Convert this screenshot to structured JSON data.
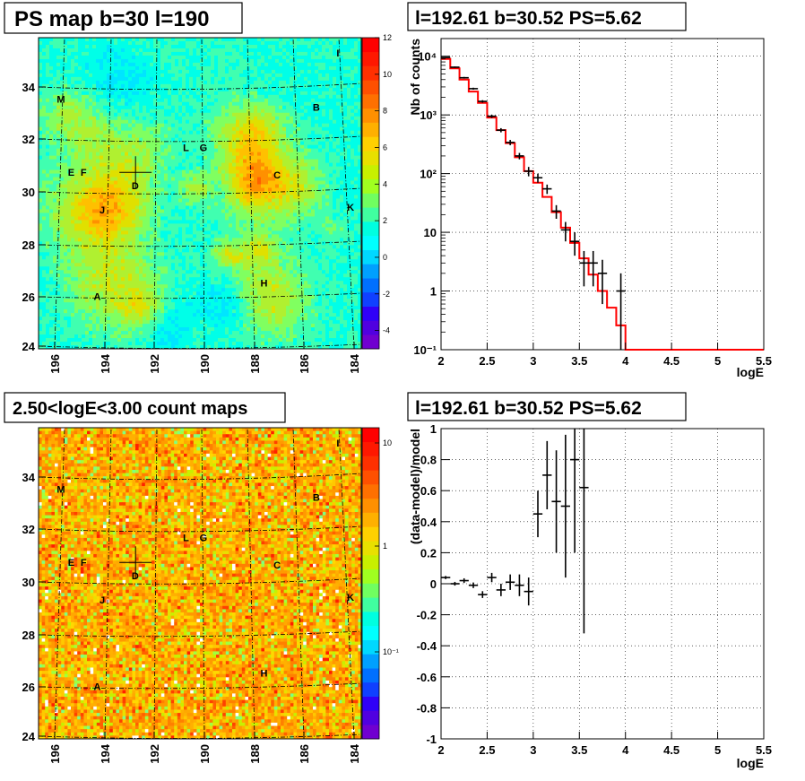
{
  "panels": {
    "ps_map": {
      "title": "PS map b=30 l=190"
    },
    "spectrum": {
      "title": "l=192.61 b=30.52 PS=5.62"
    },
    "count_map": {
      "title": "2.50<logE<3.00 count maps"
    },
    "residual": {
      "title": "l=192.61 b=30.52 PS=5.62"
    }
  },
  "chart_data": [
    {
      "type": "heatmap",
      "title": "PS map b=30 l=190",
      "x_ticks": [
        "196",
        "194",
        "192",
        "190",
        "188",
        "186",
        "184"
      ],
      "y_ticks": [
        "24",
        "26",
        "28",
        "30",
        "32",
        "34"
      ],
      "xlim": [
        196.5,
        183.5
      ],
      "ylim": [
        24,
        35.5
      ],
      "colorbar_ticks": [
        "12",
        "10",
        "8",
        "6",
        "4",
        "2",
        "0",
        "-2",
        "-4"
      ],
      "colorbar_range": [
        -5,
        12
      ],
      "sources": [
        {
          "label": "A",
          "l": 194.0,
          "b": 25.8
        },
        {
          "label": "B",
          "l": 185.4,
          "b": 32.8
        },
        {
          "label": "C",
          "l": 186.9,
          "b": 30.3
        },
        {
          "label": "D",
          "l": 192.6,
          "b": 29.9
        },
        {
          "label": "E",
          "l": 195.2,
          "b": 30.4
        },
        {
          "label": "F",
          "l": 194.7,
          "b": 30.4
        },
        {
          "label": "G",
          "l": 189.9,
          "b": 31.3
        },
        {
          "label": "H",
          "l": 187.3,
          "b": 26.3
        },
        {
          "label": "I",
          "l": 184.6,
          "b": 34.8
        },
        {
          "label": "J",
          "l": 193.9,
          "b": 29.0
        },
        {
          "label": "K",
          "l": 183.9,
          "b": 29.1
        },
        {
          "label": "L",
          "l": 190.6,
          "b": 31.3
        },
        {
          "label": "M",
          "l": 195.7,
          "b": 33.1
        }
      ],
      "marker": {
        "l": 192.61,
        "b": 30.52
      }
    },
    {
      "type": "line",
      "title": "l=192.61 b=30.52 PS=5.62",
      "xlabel": "logE",
      "ylabel": "Nb of counts",
      "xlim": [
        2,
        5.5
      ],
      "ylim": [
        0.1,
        20000
      ],
      "log_y": true,
      "x_ticks": [
        "2",
        "2.5",
        "3",
        "3.5",
        "4",
        "4.5",
        "5",
        "5.5"
      ],
      "y_ticks": [
        "10⁻¹",
        "1",
        "10",
        "10²",
        "10³",
        "10⁴"
      ],
      "grid": true,
      "model_bins": [
        2.0,
        2.1,
        2.2,
        2.3,
        2.4,
        2.5,
        2.6,
        2.7,
        2.8,
        2.9,
        3.0,
        3.1,
        3.2,
        3.3,
        3.4,
        3.5,
        3.6,
        3.7,
        3.8,
        3.9,
        4.0,
        5.5
      ],
      "model_values": [
        9000,
        6200,
        4000,
        2500,
        1600,
        900,
        550,
        330,
        190,
        110,
        70,
        40,
        22,
        12,
        6.6,
        3.6,
        1.9,
        1.0,
        0.52,
        0.26,
        0.1
      ],
      "data_points": [
        {
          "x": 2.05,
          "y": 9500,
          "err": 200
        },
        {
          "x": 2.15,
          "y": 6500,
          "err": 170
        },
        {
          "x": 2.25,
          "y": 4300,
          "err": 140
        },
        {
          "x": 2.35,
          "y": 2800,
          "err": 110
        },
        {
          "x": 2.45,
          "y": 1700,
          "err": 85
        },
        {
          "x": 2.55,
          "y": 950,
          "err": 60
        },
        {
          "x": 2.65,
          "y": 550,
          "err": 45
        },
        {
          "x": 2.75,
          "y": 340,
          "err": 35
        },
        {
          "x": 2.85,
          "y": 200,
          "err": 25
        },
        {
          "x": 2.95,
          "y": 110,
          "err": 20
        },
        {
          "x": 3.05,
          "y": 85,
          "err": 15
        },
        {
          "x": 3.15,
          "y": 55,
          "err": 10
        },
        {
          "x": 3.25,
          "y": 23,
          "err": 6
        },
        {
          "x": 3.35,
          "y": 11,
          "err": 4
        },
        {
          "x": 3.45,
          "y": 7,
          "err": 3
        },
        {
          "x": 3.55,
          "y": 3,
          "err": 1.8
        },
        {
          "x": 3.65,
          "y": 3,
          "err": 1.8
        },
        {
          "x": 3.75,
          "y": 2,
          "err": 1.4
        },
        {
          "x": 3.95,
          "y": 1,
          "err": 1
        }
      ]
    },
    {
      "type": "heatmap",
      "title": "2.50<logE<3.00 count maps",
      "x_ticks": [
        "196",
        "194",
        "192",
        "190",
        "188",
        "186",
        "184"
      ],
      "y_ticks": [
        "24",
        "26",
        "28",
        "30",
        "32",
        "34"
      ],
      "colorbar_ticks": [
        "10",
        "1",
        "10⁻¹"
      ],
      "log_color": true
    },
    {
      "type": "scatter",
      "title": "l=192.61 b=30.52 PS=5.62",
      "xlabel": "logE",
      "ylabel": "(data-model)/model",
      "xlim": [
        2,
        5.5
      ],
      "ylim": [
        -1,
        1
      ],
      "x_ticks": [
        "2",
        "2.5",
        "3",
        "3.5",
        "4",
        "4.5",
        "5",
        "5.5"
      ],
      "y_ticks": [
        "-1",
        "-0.8",
        "-0.6",
        "-0.4",
        "-0.2",
        "0",
        "0.2",
        "0.4",
        "0.6",
        "0.8",
        "1"
      ],
      "grid": true,
      "points": [
        {
          "x": 2.05,
          "y": 0.04,
          "err": 0.01
        },
        {
          "x": 2.15,
          "y": 0.0,
          "err": 0.012
        },
        {
          "x": 2.25,
          "y": 0.02,
          "err": 0.015
        },
        {
          "x": 2.35,
          "y": -0.01,
          "err": 0.018
        },
        {
          "x": 2.45,
          "y": -0.07,
          "err": 0.022
        },
        {
          "x": 2.55,
          "y": 0.04,
          "err": 0.03
        },
        {
          "x": 2.65,
          "y": -0.04,
          "err": 0.04
        },
        {
          "x": 2.75,
          "y": 0.01,
          "err": 0.05
        },
        {
          "x": 2.85,
          "y": -0.01,
          "err": 0.07
        },
        {
          "x": 2.95,
          "y": -0.05,
          "err": 0.09
        },
        {
          "x": 3.05,
          "y": 0.45,
          "err": 0.15
        },
        {
          "x": 3.15,
          "y": 0.7,
          "err": 0.22
        },
        {
          "x": 3.25,
          "y": 0.53,
          "err": 0.33
        },
        {
          "x": 3.35,
          "y": 0.5,
          "err": 0.46
        },
        {
          "x": 3.45,
          "y": 0.8,
          "err": 0.6
        },
        {
          "x": 3.55,
          "y": 0.62,
          "err": 0.94
        }
      ]
    }
  ]
}
